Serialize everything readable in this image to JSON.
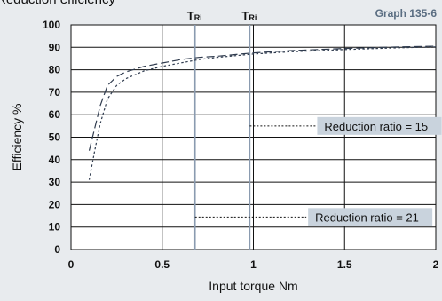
{
  "header": {
    "partial_title": "Reduction efficiency",
    "graph_id": "Graph 135-6"
  },
  "chart_data": {
    "type": "line",
    "xlabel": "Input torque   Nm",
    "ylabel": "Efficiency %",
    "xlim": [
      0,
      2
    ],
    "ylim": [
      0,
      100
    ],
    "x_ticks": [
      "0",
      "0.5",
      "1",
      "1.5",
      "2"
    ],
    "x_tick_values": [
      0,
      0.5,
      1,
      1.5,
      2
    ],
    "y_ticks": [
      "0",
      "10",
      "20",
      "30",
      "40",
      "50",
      "60",
      "70",
      "80",
      "90",
      "100"
    ],
    "y_tick_values": [
      0,
      10,
      20,
      30,
      40,
      50,
      60,
      70,
      80,
      90,
      100
    ],
    "grid": true,
    "series": [
      {
        "name": "Reduction ratio = 15",
        "style": "long-dash",
        "x": [
          0.1,
          0.13,
          0.16,
          0.2,
          0.25,
          0.3,
          0.4,
          0.5,
          0.6,
          0.7,
          0.8,
          1.0,
          1.2,
          1.5,
          1.8,
          2.0
        ],
        "y": [
          44,
          54,
          64,
          73,
          77,
          79,
          81.5,
          83,
          84.5,
          85.5,
          86,
          87.5,
          88.5,
          89.5,
          90.2,
          90.5
        ]
      },
      {
        "name": "Reduction ratio = 21",
        "style": "short-dash",
        "x": [
          0.1,
          0.13,
          0.16,
          0.2,
          0.25,
          0.3,
          0.4,
          0.5,
          0.6,
          0.7,
          0.8,
          1.0,
          1.2,
          1.5,
          1.8,
          2.0
        ],
        "y": [
          31,
          44,
          56,
          67,
          73,
          76,
          79.5,
          81.5,
          83,
          84.5,
          85.5,
          87,
          88,
          89,
          89.8,
          90.2
        ]
      }
    ],
    "vlines": [
      {
        "label": "T",
        "sub": "Ri",
        "x": 0.68,
        "color": "#8a9bb0"
      },
      {
        "label": "T",
        "sub": "Ri",
        "x": 0.98,
        "color": "#8a9bb0"
      }
    ],
    "annotations": [
      {
        "text": "Reduction ratio = 15",
        "leader_x": [
          0.98,
          1.35
        ],
        "y": 55
      },
      {
        "text": "Reduction ratio = 21",
        "leader_x": [
          0.68,
          1.3
        ],
        "y": 14.5
      }
    ],
    "colors": {
      "curves": "#2f3b4e",
      "label_bg": "#c9d3dd",
      "grid": "#111111"
    }
  }
}
